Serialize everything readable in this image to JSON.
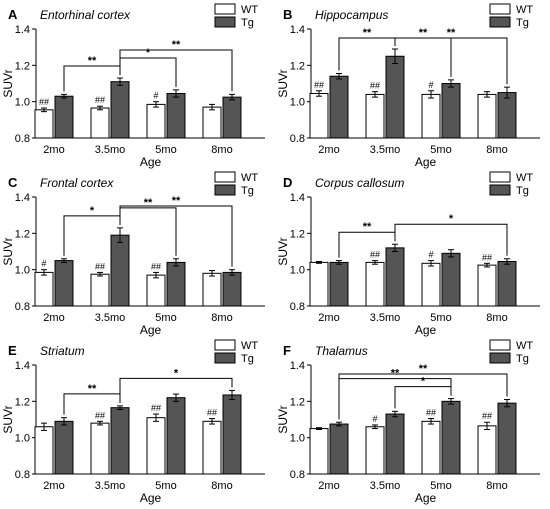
{
  "chart_data": [
    {
      "panel": "A",
      "title": "Entorhinal cortex",
      "type": "bar",
      "categories": [
        "2mo",
        "3.5mo",
        "5mo",
        "8mo"
      ],
      "xlabel": "Age",
      "ylabel": "SUVr",
      "ylim": [
        0.8,
        1.4
      ],
      "yticks": [
        "0.8",
        "1.0",
        "1.2",
        "1.4"
      ],
      "series": [
        {
          "name": "WT",
          "values": [
            0.955,
            0.965,
            0.985,
            0.97
          ],
          "errors": [
            0.01,
            0.01,
            0.015,
            0.015
          ],
          "marks": [
            "##",
            "##",
            "#",
            ""
          ]
        },
        {
          "name": "Tg",
          "values": [
            1.03,
            1.11,
            1.045,
            1.025
          ],
          "errors": [
            0.01,
            0.02,
            0.02,
            0.015
          ],
          "marks": [
            "",
            "",
            "",
            ""
          ]
        }
      ],
      "sig": [
        {
          "from": 0,
          "to": 1,
          "label": "**"
        },
        {
          "from": 1,
          "to": 2,
          "label": "*"
        },
        {
          "from": 1,
          "to": 3,
          "label": "**"
        }
      ]
    },
    {
      "panel": "B",
      "title": "Hippocampus",
      "type": "bar",
      "categories": [
        "2mo",
        "3.5mo",
        "5mo",
        "8mo"
      ],
      "xlabel": "Age",
      "ylabel": "SUVr",
      "ylim": [
        0.8,
        1.4
      ],
      "yticks": [
        "0.8",
        "1.0",
        "1.2",
        "1.4"
      ],
      "series": [
        {
          "name": "WT",
          "values": [
            1.045,
            1.04,
            1.04,
            1.04
          ],
          "errors": [
            0.015,
            0.015,
            0.02,
            0.015
          ],
          "marks": [
            "##",
            "##",
            "#",
            ""
          ]
        },
        {
          "name": "Tg",
          "values": [
            1.14,
            1.25,
            1.1,
            1.05
          ],
          "errors": [
            0.015,
            0.04,
            0.02,
            0.03
          ],
          "marks": [
            "",
            "",
            "",
            ""
          ]
        }
      ],
      "sig": [
        {
          "from": 0,
          "to": 1,
          "label": "**"
        },
        {
          "from": 1,
          "to": 2,
          "label": "**"
        },
        {
          "from": 1,
          "to": 3,
          "label": "**"
        }
      ]
    },
    {
      "panel": "C",
      "title": "Frontal cortex",
      "type": "bar",
      "categories": [
        "2mo",
        "3.5mo",
        "5mo",
        "8mo"
      ],
      "xlabel": "Age",
      "ylabel": "SUVr",
      "ylim": [
        0.8,
        1.4
      ],
      "yticks": [
        "0.8",
        "1.0",
        "1.2",
        "1.4"
      ],
      "series": [
        {
          "name": "WT",
          "values": [
            0.985,
            0.975,
            0.97,
            0.98
          ],
          "errors": [
            0.015,
            0.01,
            0.015,
            0.015
          ],
          "marks": [
            "#",
            "##",
            "##",
            ""
          ]
        },
        {
          "name": "Tg",
          "values": [
            1.05,
            1.19,
            1.04,
            0.985
          ],
          "errors": [
            0.01,
            0.04,
            0.02,
            0.015
          ],
          "marks": [
            "",
            "",
            "",
            ""
          ]
        }
      ],
      "sig": [
        {
          "from": 0,
          "to": 1,
          "label": "*"
        },
        {
          "from": 1,
          "to": 2,
          "label": "**"
        },
        {
          "from": 1,
          "to": 3,
          "label": "**"
        }
      ]
    },
    {
      "panel": "D",
      "title": "Corpus callosum",
      "type": "bar",
      "categories": [
        "2mo",
        "3.5mo",
        "5mo",
        "8mo"
      ],
      "xlabel": "Age",
      "ylabel": "SUVr",
      "ylim": [
        0.8,
        1.4
      ],
      "yticks": [
        "0.8",
        "1.0",
        "1.2",
        "1.4"
      ],
      "series": [
        {
          "name": "WT",
          "values": [
            1.04,
            1.04,
            1.035,
            1.025
          ],
          "errors": [
            0.005,
            0.01,
            0.015,
            0.01
          ],
          "marks": [
            "",
            "##",
            "#",
            "##"
          ]
        },
        {
          "name": "Tg",
          "values": [
            1.04,
            1.12,
            1.09,
            1.045
          ],
          "errors": [
            0.01,
            0.02,
            0.02,
            0.015
          ],
          "marks": [
            "",
            "",
            "",
            ""
          ]
        }
      ],
      "sig": [
        {
          "from": 0,
          "to": 1,
          "label": "**"
        },
        {
          "from": 1,
          "to": 3,
          "label": "*"
        }
      ]
    },
    {
      "panel": "E",
      "title": "Striatum",
      "type": "bar",
      "categories": [
        "2mo",
        "3.5mo",
        "5mo",
        "8mo"
      ],
      "xlabel": "Age",
      "ylabel": "SUVr",
      "ylim": [
        0.8,
        1.4
      ],
      "yticks": [
        "0.8",
        "1.0",
        "1.2",
        "1.4"
      ],
      "series": [
        {
          "name": "WT",
          "values": [
            1.06,
            1.08,
            1.11,
            1.09
          ],
          "errors": [
            0.02,
            0.01,
            0.02,
            0.015
          ],
          "marks": [
            "",
            "##",
            "##",
            "##"
          ]
        },
        {
          "name": "Tg",
          "values": [
            1.09,
            1.165,
            1.22,
            1.235
          ],
          "errors": [
            0.02,
            0.01,
            0.02,
            0.025
          ],
          "marks": [
            "",
            "",
            "",
            ""
          ]
        }
      ],
      "sig": [
        {
          "from": 0,
          "to": 1,
          "label": "**"
        },
        {
          "from": 1,
          "to": 3,
          "label": "*"
        }
      ]
    },
    {
      "panel": "F",
      "title": "Thalamus",
      "type": "bar",
      "categories": [
        "2mo",
        "3.5mo",
        "5mo",
        "8mo"
      ],
      "xlabel": "Age",
      "ylabel": "SUVr",
      "ylim": [
        0.8,
        1.4
      ],
      "yticks": [
        "0.8",
        "1.0",
        "1.2",
        "1.4"
      ],
      "series": [
        {
          "name": "WT",
          "values": [
            1.05,
            1.06,
            1.09,
            1.065
          ],
          "errors": [
            0.005,
            0.01,
            0.015,
            0.02
          ],
          "marks": [
            "",
            "#",
            "##",
            "##"
          ]
        },
        {
          "name": "Tg",
          "values": [
            1.075,
            1.13,
            1.2,
            1.19
          ],
          "errors": [
            0.01,
            0.015,
            0.015,
            0.02
          ],
          "marks": [
            "",
            "",
            "",
            ""
          ]
        }
      ],
      "sig": [
        {
          "from": 1,
          "to": 2,
          "label": "*"
        },
        {
          "from": 0,
          "to": 2,
          "label": "**"
        },
        {
          "from": 0,
          "to": 3,
          "label": "**"
        }
      ]
    }
  ]
}
